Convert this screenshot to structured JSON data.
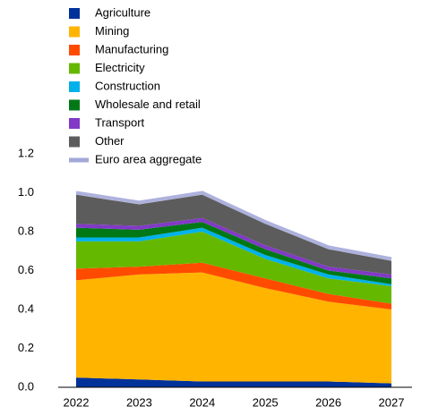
{
  "chart_data": {
    "type": "stacked-area",
    "categories": [
      "2022",
      "2023",
      "2024",
      "2025",
      "2026",
      "2027"
    ],
    "ylim": [
      0,
      1.2
    ],
    "yticks": [
      {
        "value": 0,
        "label": "0.0"
      },
      0.2,
      0.4,
      0.6,
      0.8,
      {
        "value": 1,
        "label": "1.0"
      },
      1.2
    ],
    "grid": false,
    "legend": "top-left",
    "series": [
      {
        "name": "Agriculture",
        "color": "#003299",
        "values": [
          0.05,
          0.04,
          0.03,
          0.03,
          0.03,
          0.02
        ]
      },
      {
        "name": "Mining",
        "color": "#ffb400",
        "values": [
          0.5,
          0.54,
          0.56,
          0.48,
          0.41,
          0.38
        ]
      },
      {
        "name": "Manufacturing",
        "color": "#ff4b00",
        "values": [
          0.06,
          0.04,
          0.05,
          0.05,
          0.04,
          0.03
        ]
      },
      {
        "name": "Electricity",
        "color": "#65b800",
        "values": [
          0.14,
          0.13,
          0.16,
          0.1,
          0.08,
          0.09
        ]
      },
      {
        "name": "Construction",
        "color": "#00b1ea",
        "values": [
          0.02,
          0.02,
          0.02,
          0.02,
          0.02,
          0.01
        ]
      },
      {
        "name": "Wholesale and retail",
        "color": "#007816",
        "values": [
          0.05,
          0.04,
          0.03,
          0.03,
          0.02,
          0.03
        ]
      },
      {
        "name": "Transport",
        "color": "#8139c6",
        "values": [
          0.02,
          0.02,
          0.02,
          0.02,
          0.02,
          0.02
        ]
      },
      {
        "name": "Other",
        "color": "#5c5c5c",
        "values": [
          0.15,
          0.11,
          0.12,
          0.11,
          0.09,
          0.07
        ]
      },
      {
        "name": "Euro area aggregate",
        "color": "#a4a8d8",
        "kind": "line",
        "values": [
          1.0,
          0.95,
          1.0,
          0.85,
          0.72,
          0.66
        ]
      }
    ]
  }
}
